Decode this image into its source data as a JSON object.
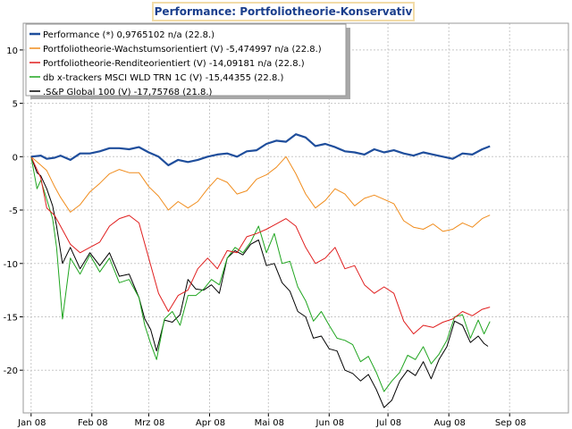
{
  "chart_data": {
    "type": "line",
    "title": "Performance: Portfoliotheorie-Konservativ",
    "ylim": [
      -24,
      12.5
    ],
    "y_ticks": [
      10,
      5,
      0,
      -5,
      -10,
      -15,
      -20
    ],
    "x_ticks": [
      "Jan 08",
      "Feb 08",
      "Mrz 08",
      "Apr 08",
      "Mai 08",
      "Jun 08",
      "Jul 08",
      "Aug 08",
      "Sep 08"
    ],
    "x_tick_days": [
      0,
      31,
      60,
      91,
      121,
      152,
      182,
      213,
      244
    ],
    "x_range_days": [
      -4,
      274
    ],
    "grid": true,
    "legend_position": "top-left",
    "series": [
      {
        "name": "Performance (*) 0,9765102 n/a (22.8.)",
        "color": "#1f4e9c",
        "width": 2.2,
        "x": [
          0,
          5,
          8,
          12,
          15,
          20,
          25,
          30,
          35,
          40,
          45,
          50,
          55,
          60,
          65,
          70,
          75,
          80,
          85,
          90,
          95,
          100,
          105,
          110,
          115,
          120,
          125,
          130,
          135,
          140,
          145,
          150,
          155,
          160,
          165,
          170,
          175,
          180,
          185,
          190,
          195,
          200,
          205,
          210,
          215,
          220,
          225,
          230,
          234
        ],
        "y": [
          0,
          0.1,
          -0.2,
          -0.1,
          0.1,
          -0.3,
          0.3,
          0.3,
          0.5,
          0.8,
          0.8,
          0.7,
          0.9,
          0.4,
          0,
          -0.8,
          -0.3,
          -0.5,
          -0.3,
          0,
          0.2,
          0.3,
          0,
          0.5,
          0.6,
          1.2,
          1.5,
          1.4,
          2.1,
          1.8,
          1,
          1.2,
          0.9,
          0.5,
          0.4,
          0.2,
          0.7,
          0.4,
          0.6,
          0.3,
          0.1,
          0.4,
          0.2,
          0,
          -0.2,
          0.3,
          0.2,
          0.7,
          0.98
        ]
      },
      {
        "name": "Portfoliotheorie-Wachstumsorientiert (V) -5,474997 n/a (22.8.)",
        "color": "#f08c1c",
        "width": 1,
        "x": [
          0,
          5,
          8,
          12,
          15,
          20,
          25,
          30,
          35,
          40,
          45,
          50,
          55,
          60,
          65,
          70,
          75,
          80,
          85,
          90,
          95,
          100,
          105,
          110,
          115,
          120,
          125,
          130,
          135,
          140,
          145,
          150,
          155,
          160,
          165,
          170,
          175,
          180,
          185,
          190,
          195,
          200,
          205,
          210,
          215,
          220,
          225,
          230,
          234
        ],
        "y": [
          0,
          -0.8,
          -1.3,
          -2.8,
          -3.8,
          -5.2,
          -4.5,
          -3.3,
          -2.5,
          -1.6,
          -1.2,
          -1.5,
          -1.5,
          -2.8,
          -3.7,
          -5,
          -4.2,
          -4.8,
          -4.2,
          -3,
          -2,
          -2.4,
          -3.5,
          -3.2,
          -2.1,
          -1.7,
          -1,
          0,
          -1.6,
          -3.5,
          -4.8,
          -4.1,
          -3,
          -3.5,
          -4.6,
          -3.9,
          -3.6,
          -4,
          -4.4,
          -6,
          -6.6,
          -6.8,
          -6.3,
          -7,
          -6.8,
          -6.2,
          -6.6,
          -5.8,
          -5.47
        ]
      },
      {
        "name": "Portfoliotheorie-Renditeorientiert (V) -14,09181 n/a (22.8.)",
        "color": "#e01e1e",
        "width": 1,
        "x": [
          0,
          5,
          8,
          12,
          15,
          20,
          25,
          30,
          35,
          40,
          45,
          50,
          55,
          60,
          65,
          70,
          75,
          80,
          85,
          90,
          95,
          100,
          105,
          110,
          115,
          120,
          125,
          130,
          135,
          140,
          145,
          150,
          155,
          160,
          165,
          170,
          175,
          180,
          185,
          190,
          195,
          200,
          205,
          210,
          215,
          220,
          225,
          230,
          234
        ],
        "y": [
          0,
          -2,
          -4.8,
          -5.5,
          -6.5,
          -8.2,
          -9,
          -8.5,
          -8,
          -6.5,
          -5.8,
          -5.5,
          -6.2,
          -9.5,
          -12.8,
          -14.5,
          -13,
          -12.5,
          -10.5,
          -9.5,
          -10.5,
          -8.8,
          -9,
          -7.5,
          -7.2,
          -6.8,
          -6.3,
          -5.8,
          -6.5,
          -8.5,
          -10,
          -9.5,
          -8.5,
          -10.5,
          -10.2,
          -12,
          -12.8,
          -12.2,
          -12.8,
          -15.4,
          -16.6,
          -15.8,
          -16,
          -15.5,
          -15.2,
          -14.5,
          -14.9,
          -14.3,
          -14.09
        ]
      },
      {
        "name": "db x-trackers MSCI WLD TRN 1C (V) -15,44355 (22.8.)",
        "color": "#1fa51f",
        "width": 1,
        "x": [
          0,
          3,
          5,
          8,
          11,
          13,
          16,
          20,
          25,
          30,
          35,
          40,
          45,
          50,
          55,
          58,
          61,
          64,
          68,
          72,
          76,
          80,
          84,
          88,
          92,
          96,
          100,
          104,
          108,
          112,
          116,
          120,
          124,
          128,
          132,
          136,
          140,
          144,
          148,
          152,
          156,
          160,
          164,
          168,
          172,
          176,
          180,
          184,
          188,
          192,
          196,
          200,
          204,
          208,
          212,
          216,
          220,
          224,
          228,
          231,
          234
        ],
        "y": [
          0,
          -3,
          -2.2,
          -4,
          -5.8,
          -8.5,
          -15.2,
          -9.5,
          -11,
          -9.2,
          -10.8,
          -9.5,
          -11.8,
          -11.5,
          -13.2,
          -15.8,
          -17.5,
          -19,
          -15.2,
          -14.5,
          -15.8,
          -13,
          -13,
          -12.4,
          -11.5,
          -12,
          -9.5,
          -8.5,
          -9,
          -8,
          -6.5,
          -9,
          -7.2,
          -10,
          -9.8,
          -12.2,
          -13.5,
          -15.4,
          -14.5,
          -15.8,
          -17,
          -17.2,
          -17.6,
          -19.2,
          -18.7,
          -20.2,
          -22,
          -21,
          -20.2,
          -18.6,
          -19,
          -17.8,
          -19.4,
          -18.5,
          -17.2,
          -15,
          -14.8,
          -17,
          -15.3,
          -16.6,
          -15.44
        ]
      },
      {
        "name": ".S&P Global 100 (V) -17,75768 (21.8.)",
        "color": "#000000",
        "width": 1,
        "x": [
          0,
          3,
          5,
          8,
          11,
          13,
          16,
          20,
          25,
          30,
          35,
          40,
          45,
          50,
          55,
          58,
          61,
          64,
          68,
          72,
          76,
          80,
          84,
          88,
          92,
          96,
          100,
          104,
          108,
          112,
          116,
          120,
          124,
          128,
          132,
          136,
          140,
          144,
          148,
          152,
          156,
          160,
          164,
          168,
          172,
          176,
          180,
          184,
          188,
          192,
          196,
          200,
          204,
          208,
          212,
          216,
          220,
          224,
          228,
          231,
          233
        ],
        "y": [
          0,
          -1.5,
          -1.8,
          -3,
          -4.6,
          -6.5,
          -10,
          -8.5,
          -10.5,
          -9,
          -10.2,
          -9,
          -11.2,
          -11,
          -13.2,
          -15.2,
          -16.2,
          -18.2,
          -15.3,
          -15.5,
          -14.8,
          -11.5,
          -12.4,
          -12.5,
          -12,
          -12.8,
          -9.5,
          -8.8,
          -9.2,
          -8.2,
          -7.8,
          -10.2,
          -10,
          -11.8,
          -12.6,
          -14.5,
          -15,
          -17,
          -16.8,
          -18,
          -18.2,
          -20,
          -20.3,
          -21,
          -20.4,
          -21.8,
          -23.5,
          -22.8,
          -21,
          -20,
          -20.5,
          -19.2,
          -20.8,
          -19,
          -17.8,
          -15.4,
          -15.8,
          -17.4,
          -16.8,
          -17.5,
          -17.76
        ]
      }
    ]
  }
}
